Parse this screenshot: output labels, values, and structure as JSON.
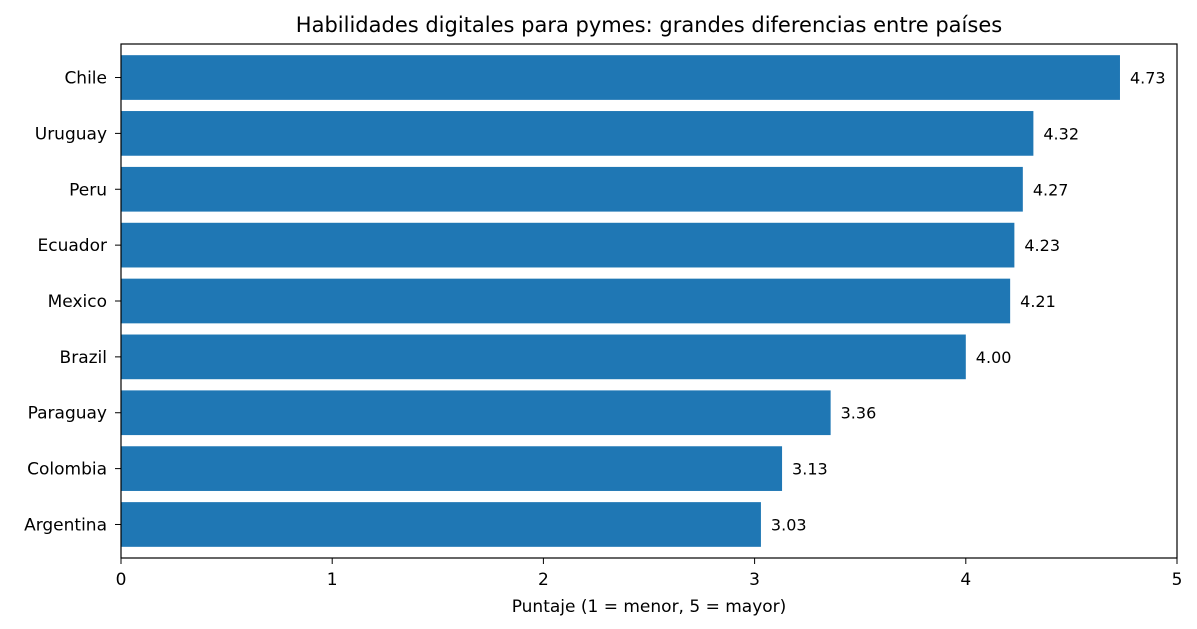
{
  "chart_data": {
    "type": "bar",
    "orientation": "horizontal",
    "title": "Habilidades digitales para pymes: grandes diferencias entre países",
    "xlabel": "Puntaje (1 = menor, 5 = mayor)",
    "ylabel": "",
    "xlim": [
      0,
      5
    ],
    "xticks": [
      "0",
      "1",
      "2",
      "3",
      "4",
      "5"
    ],
    "categories": [
      "Chile",
      "Uruguay",
      "Peru",
      "Ecuador",
      "Mexico",
      "Brazil",
      "Paraguay",
      "Colombia",
      "Argentina"
    ],
    "values": [
      4.73,
      4.32,
      4.27,
      4.23,
      4.21,
      4.0,
      3.36,
      3.13,
      3.03
    ],
    "data_labels": [
      "4.73",
      "4.32",
      "4.27",
      "4.23",
      "4.21",
      "4.00",
      "3.36",
      "3.13",
      "3.03"
    ],
    "bar_color": "#1f77b4",
    "grid": false
  }
}
